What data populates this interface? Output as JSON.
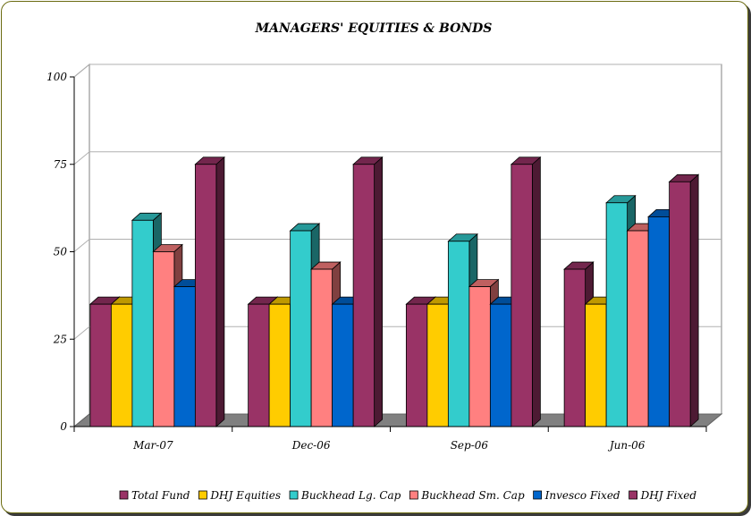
{
  "chart_data": {
    "type": "bar",
    "title": "MANAGERS' EQUITIES & BONDS",
    "xlabel": "",
    "ylabel": "",
    "ylim": [
      0,
      100
    ],
    "yticks": [
      0,
      25,
      50,
      75,
      100
    ],
    "grid": true,
    "legend_position": "bottom",
    "three_d": true,
    "categories": [
      "Mar-07",
      "Dec-06",
      "Sep-06",
      "Jun-06"
    ],
    "series": [
      {
        "name": "Total Fund",
        "color": "#993366",
        "values": [
          35,
          35,
          35,
          45
        ]
      },
      {
        "name": "DHJ Equities",
        "color": "#ffcc00",
        "values": [
          35,
          35,
          35,
          35
        ]
      },
      {
        "name": "Buckhead Lg. Cap",
        "color": "#33cccc",
        "values": [
          59,
          56,
          53,
          64
        ]
      },
      {
        "name": "Buckhead Sm. Cap",
        "color": "#ff8080",
        "values": [
          50,
          45,
          40,
          56
        ]
      },
      {
        "name": "Invesco Fixed",
        "color": "#0066cc",
        "values": [
          40,
          35,
          35,
          60
        ]
      },
      {
        "name": "DHJ Fixed",
        "color": "#993366",
        "values": [
          75,
          75,
          75,
          70
        ]
      }
    ]
  }
}
